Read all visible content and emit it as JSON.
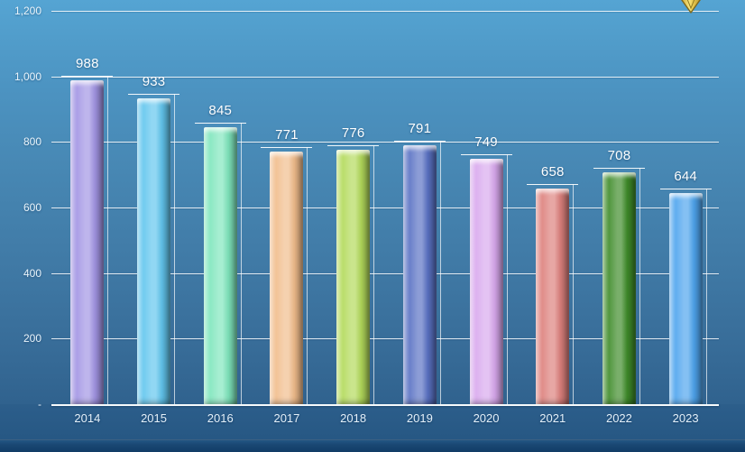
{
  "chart_data": {
    "type": "bar",
    "title": "",
    "categories": [
      "2014",
      "2015",
      "2016",
      "2017",
      "2018",
      "2019",
      "2020",
      "2021",
      "2022",
      "2023"
    ],
    "values": [
      988,
      933,
      845,
      771,
      776,
      791,
      749,
      658,
      708,
      644
    ],
    "data_labels": [
      "988",
      "933",
      "845",
      "771",
      "776",
      "791",
      "749",
      "658",
      "708",
      "644"
    ],
    "bar_colors": [
      "#a295e4",
      "#62c6ee",
      "#7fe6bd",
      "#f1bd8c",
      "#b3da5b",
      "#5a72c4",
      "#d9a9ee",
      "#dd817d",
      "#3f8c2a",
      "#4fa5ee"
    ],
    "xlabel": "",
    "ylabel": "",
    "ylim": [
      0,
      1200
    ],
    "y_ticks": {
      "values": [
        0,
        200,
        400,
        600,
        800,
        1000,
        1200
      ],
      "labels": [
        "-",
        "200",
        "400",
        "600",
        "800",
        "1,000",
        "1,200"
      ]
    },
    "grid": true,
    "legend": false,
    "layout_hints": {
      "gridline_color": "#ffffff",
      "label_color": "#feffff",
      "tick_label_color": "#e9f4fb",
      "bars_in_front_of_grid": true,
      "style": "3d-beveled-columns-on-blue-gradient-slide"
    }
  },
  "canvas": {
    "background_top_color": "#55a4d3",
    "background_bottom_color": "#245481",
    "footer_band_color": "#1a4874"
  },
  "annotation": {
    "name": "gold-down-arrow-tip",
    "description": "bottom tip of a gold arrow cut off by top edge",
    "fill_bright": "#f7e47c",
    "fill_dark": "#c09a2a",
    "outline": "#7d671c"
  }
}
